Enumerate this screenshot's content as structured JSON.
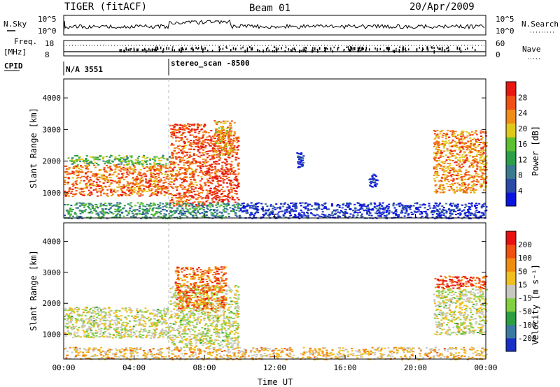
{
  "header": {
    "radar": "TIGER (fitACF)",
    "beam": "Beam 01",
    "date": "20/Apr/2009"
  },
  "strip": {
    "nsky_label": "N.Sky",
    "nsky_ticks": [
      "10^5",
      "10^0"
    ],
    "nsearch_label": "N.Search",
    "nsearch_ticks": [
      "10^5",
      "10^0"
    ],
    "freq_label_1": "Freq.",
    "freq_label_2": "[MHz]",
    "freq_ticks": [
      "18",
      "8"
    ],
    "nave_label": "Nave",
    "nave_ticks": [
      "60",
      "0"
    ],
    "cpid_label": "CPID",
    "cpid_1": "N/A 3551",
    "cpid_2": "stereo_scan -8500"
  },
  "chart_data": [
    {
      "type": "heatmap",
      "name": "power",
      "ylabel": "Slant Range [km]",
      "yticks": [
        "4000",
        "3000",
        "2000",
        "1000"
      ],
      "ylim": [
        200,
        4600
      ],
      "xlim": [
        0,
        24
      ],
      "colorbar_label": "Power [dB]",
      "colorbar_ticks": [
        "28",
        "24",
        "20",
        "16",
        "12",
        "8",
        "4"
      ],
      "colorbar_colors": [
        "#0a14e0",
        "#2a4aa8",
        "#3a7a90",
        "#2ca048",
        "#5cc030",
        "#e0c818",
        "#f08c18",
        "#f05014",
        "#e81810"
      ],
      "regions": [
        {
          "t0": 0.0,
          "t1": 6.0,
          "r0": 900,
          "r1": 1900,
          "level": 0.78
        },
        {
          "t0": 0.2,
          "t1": 6.0,
          "r0": 1900,
          "r1": 2200,
          "level": 0.45
        },
        {
          "t0": 6.0,
          "t1": 8.0,
          "r0": 600,
          "r1": 3200,
          "level": 0.82
        },
        {
          "t0": 8.0,
          "t1": 9.9,
          "r0": 700,
          "r1": 3000,
          "level": 0.88
        },
        {
          "t0": 8.5,
          "t1": 9.7,
          "r0": 2200,
          "r1": 3300,
          "level": 0.7
        },
        {
          "t0": 0.0,
          "t1": 10.0,
          "r0": 200,
          "r1": 700,
          "level": 0.35
        },
        {
          "t0": 10.0,
          "t1": 24.0,
          "r0": 200,
          "r1": 700,
          "level": 0.08
        },
        {
          "t0": 21.0,
          "t1": 24.0,
          "r0": 1000,
          "r1": 3000,
          "level": 0.75
        },
        {
          "t0": 17.3,
          "t1": 17.8,
          "r0": 1200,
          "r1": 1600,
          "level": 0.06
        },
        {
          "t0": 13.2,
          "t1": 13.6,
          "r0": 1800,
          "r1": 2300,
          "level": 0.1
        }
      ]
    },
    {
      "type": "heatmap",
      "name": "velocity",
      "ylabel": "Slant Range [km]",
      "yticks": [
        "4000",
        "3000",
        "2000",
        "1000"
      ],
      "ylim": [
        200,
        4600
      ],
      "xlim": [
        0,
        24
      ],
      "xticks": [
        "00:00",
        "04:00",
        "08:00",
        "12:00",
        "16:00",
        "20:00",
        "00:00"
      ],
      "xlabel": "Time UT",
      "colorbar_label": "Velocity [m s⁻¹]",
      "colorbar_ticks": [
        "200",
        "100",
        "50",
        "15",
        "-15",
        "-50",
        "-100",
        "-200"
      ],
      "colorbar_colors": [
        "#1830c8",
        "#3a7aa0",
        "#2ca040",
        "#80d040",
        "#c8c8c0",
        "#f0c020",
        "#f08c10",
        "#f05010",
        "#e81010"
      ],
      "regions": [
        {
          "t0": 0.0,
          "t1": 6.0,
          "r0": 900,
          "r1": 1900,
          "level": 0.5
        },
        {
          "t0": 6.0,
          "t1": 9.9,
          "r0": 600,
          "r1": 2600,
          "level": 0.5
        },
        {
          "t0": 6.3,
          "t1": 9.2,
          "r0": 1800,
          "r1": 3200,
          "level": 0.78
        },
        {
          "t0": 0.0,
          "t1": 24.0,
          "r0": 200,
          "r1": 600,
          "level": 0.62
        },
        {
          "t0": 21.0,
          "t1": 24.0,
          "r0": 1000,
          "r1": 2500,
          "level": 0.5
        },
        {
          "t0": 21.0,
          "t1": 24.0,
          "r0": 2500,
          "r1": 2900,
          "level": 0.85
        }
      ]
    }
  ]
}
